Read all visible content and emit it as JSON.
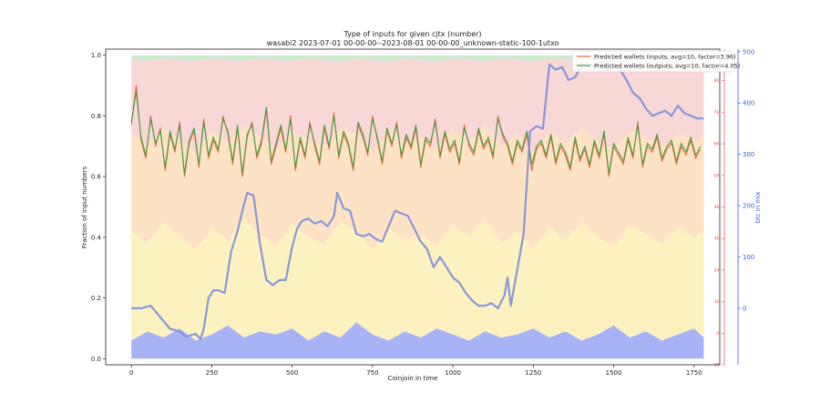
{
  "chart_data": {
    "type": "line",
    "title": "Type of inputs for given cjtx (number)",
    "subtitle": "wasabi2 2023-07-01 00-00-00--2023-08-01 00-00-00_unknown-static-100-1utxo",
    "xlabel": "Coinjoin in time",
    "ylabel": "Fraction of input numbers",
    "y2label": "btc in mix",
    "xlim": [
      -80,
      1830
    ],
    "ylim": [
      -0.02,
      1.02
    ],
    "y2lim": [
      -110,
      505
    ],
    "y3lim": [
      -10,
      90
    ],
    "x_ticks": [
      0,
      250,
      500,
      750,
      1000,
      1250,
      1500,
      1750
    ],
    "y_ticks": [
      0.0,
      0.2,
      0.4,
      0.6,
      0.8,
      1.0
    ],
    "y2_ticks": [
      0,
      100,
      200,
      300,
      400,
      500
    ],
    "y3_ticks": [
      -10,
      0,
      10,
      20,
      30,
      40,
      50,
      60,
      70,
      80
    ],
    "legend": {
      "position": "top-right"
    },
    "colors": {
      "inputs": "#e8653a",
      "outputs": "#3f9e3f",
      "btc": "#7b8fd9",
      "y2axis": "#3d5fd6",
      "y3axis": "#e0362c",
      "band_blue": "#a8b3f5",
      "band_yellow": "#fdf1c0",
      "band_orange": "#fde3c6",
      "band_pink": "#f8d7d7",
      "band_green": "#cfe9cf"
    },
    "series": [
      {
        "name": "Predicted wallets (inputs, avg=10, factor=3.96)",
        "axis": "y",
        "x": [
          0,
          15,
          30,
          45,
          60,
          75,
          90,
          105,
          120,
          135,
          150,
          165,
          180,
          195,
          210,
          225,
          240,
          255,
          270,
          285,
          300,
          315,
          330,
          345,
          360,
          375,
          390,
          405,
          420,
          435,
          450,
          465,
          480,
          495,
          510,
          525,
          540,
          555,
          570,
          585,
          600,
          615,
          630,
          645,
          660,
          675,
          690,
          705,
          720,
          735,
          750,
          765,
          780,
          795,
          810,
          825,
          840,
          855,
          870,
          885,
          900,
          915,
          930,
          945,
          960,
          975,
          990,
          1005,
          1020,
          1035,
          1050,
          1065,
          1080,
          1095,
          1110,
          1125,
          1140,
          1155,
          1170,
          1185,
          1200,
          1215,
          1230,
          1245,
          1260,
          1275,
          1290,
          1305,
          1320,
          1335,
          1350,
          1365,
          1380,
          1395,
          1410,
          1425,
          1440,
          1455,
          1470,
          1485,
          1500,
          1515,
          1530,
          1545,
          1560,
          1575,
          1590,
          1605,
          1620,
          1635,
          1650,
          1665,
          1680,
          1695,
          1710,
          1725,
          1740,
          1755,
          1770
        ],
        "values": [
          0.77,
          0.9,
          0.72,
          0.66,
          0.8,
          0.7,
          0.76,
          0.62,
          0.74,
          0.68,
          0.78,
          0.6,
          0.71,
          0.75,
          0.63,
          0.79,
          0.66,
          0.72,
          0.68,
          0.8,
          0.74,
          0.64,
          0.76,
          0.6,
          0.73,
          0.78,
          0.66,
          0.71,
          0.82,
          0.64,
          0.7,
          0.76,
          0.68,
          0.8,
          0.62,
          0.72,
          0.66,
          0.78,
          0.7,
          0.64,
          0.76,
          0.69,
          0.81,
          0.66,
          0.74,
          0.7,
          0.62,
          0.77,
          0.73,
          0.67,
          0.8,
          0.72,
          0.64,
          0.75,
          0.7,
          0.78,
          0.66,
          0.73,
          0.69,
          0.76,
          0.63,
          0.72,
          0.7,
          0.79,
          0.66,
          0.74,
          0.68,
          0.71,
          0.64,
          0.77,
          0.7,
          0.67,
          0.75,
          0.69,
          0.72,
          0.66,
          0.8,
          0.73,
          0.7,
          0.64,
          0.71,
          0.68,
          0.74,
          0.62,
          0.69,
          0.71,
          0.66,
          0.73,
          0.64,
          0.7,
          0.67,
          0.62,
          0.72,
          0.65,
          0.69,
          0.63,
          0.71,
          0.66,
          0.74,
          0.6,
          0.7,
          0.67,
          0.64,
          0.72,
          0.66,
          0.78,
          0.63,
          0.7,
          0.68,
          0.73,
          0.65,
          0.69,
          0.71,
          0.64,
          0.7,
          0.67,
          0.72,
          0.66,
          0.69
        ]
      },
      {
        "name": "Predicted wallets (outputs, avg=10, factor=4.05)",
        "axis": "y",
        "x": [
          0,
          15,
          30,
          45,
          60,
          75,
          90,
          105,
          120,
          135,
          150,
          165,
          180,
          195,
          210,
          225,
          240,
          255,
          270,
          285,
          300,
          315,
          330,
          345,
          360,
          375,
          390,
          405,
          420,
          435,
          450,
          465,
          480,
          495,
          510,
          525,
          540,
          555,
          570,
          585,
          600,
          615,
          630,
          645,
          660,
          675,
          690,
          705,
          720,
          735,
          750,
          765,
          780,
          795,
          810,
          825,
          840,
          855,
          870,
          885,
          900,
          915,
          930,
          945,
          960,
          975,
          990,
          1005,
          1020,
          1035,
          1050,
          1065,
          1080,
          1095,
          1110,
          1125,
          1140,
          1155,
          1170,
          1185,
          1200,
          1215,
          1230,
          1245,
          1260,
          1275,
          1290,
          1305,
          1320,
          1335,
          1350,
          1365,
          1380,
          1395,
          1410,
          1425,
          1440,
          1455,
          1470,
          1485,
          1500,
          1515,
          1530,
          1545,
          1560,
          1575,
          1590,
          1605,
          1620,
          1635,
          1650,
          1665,
          1680,
          1695,
          1710,
          1725,
          1740,
          1755,
          1770
        ],
        "values": [
          0.78,
          0.88,
          0.73,
          0.67,
          0.79,
          0.71,
          0.75,
          0.63,
          0.75,
          0.69,
          0.77,
          0.61,
          0.72,
          0.76,
          0.64,
          0.78,
          0.67,
          0.73,
          0.69,
          0.79,
          0.75,
          0.65,
          0.77,
          0.61,
          0.74,
          0.77,
          0.67,
          0.72,
          0.83,
          0.65,
          0.71,
          0.77,
          0.69,
          0.79,
          0.63,
          0.73,
          0.67,
          0.77,
          0.71,
          0.65,
          0.77,
          0.7,
          0.8,
          0.67,
          0.75,
          0.71,
          0.63,
          0.78,
          0.74,
          0.68,
          0.79,
          0.73,
          0.65,
          0.76,
          0.71,
          0.77,
          0.67,
          0.74,
          0.7,
          0.77,
          0.64,
          0.73,
          0.71,
          0.78,
          0.67,
          0.75,
          0.69,
          0.72,
          0.65,
          0.76,
          0.71,
          0.68,
          0.76,
          0.7,
          0.73,
          0.67,
          0.79,
          0.74,
          0.71,
          0.65,
          0.72,
          0.69,
          0.75,
          0.64,
          0.7,
          0.72,
          0.67,
          0.74,
          0.65,
          0.71,
          0.68,
          0.63,
          0.73,
          0.66,
          0.7,
          0.64,
          0.72,
          0.67,
          0.75,
          0.61,
          0.71,
          0.68,
          0.65,
          0.73,
          0.67,
          0.77,
          0.64,
          0.71,
          0.69,
          0.74,
          0.66,
          0.7,
          0.72,
          0.65,
          0.71,
          0.68,
          0.73,
          0.67,
          0.7
        ]
      },
      {
        "name": "btc in mix",
        "axis": "y2",
        "x": [
          0,
          30,
          60,
          80,
          100,
          120,
          150,
          170,
          200,
          215,
          225,
          240,
          255,
          270,
          290,
          310,
          330,
          345,
          360,
          380,
          400,
          420,
          440,
          460,
          480,
          500,
          515,
          530,
          550,
          570,
          590,
          610,
          630,
          640,
          660,
          680,
          700,
          720,
          740,
          760,
          780,
          800,
          820,
          840,
          860,
          880,
          900,
          920,
          940,
          960,
          980,
          1000,
          1020,
          1040,
          1060,
          1080,
          1100,
          1120,
          1140,
          1160,
          1170,
          1180,
          1200,
          1220,
          1240,
          1260,
          1280,
          1300,
          1320,
          1340,
          1360,
          1380,
          1400,
          1420,
          1440,
          1460,
          1480,
          1500,
          1520,
          1540,
          1560,
          1580,
          1600,
          1620,
          1640,
          1660,
          1680,
          1700,
          1720,
          1740,
          1760,
          1780
        ],
        "values": [
          0,
          0,
          5,
          -10,
          -25,
          -40,
          -45,
          -55,
          -50,
          -60,
          -40,
          20,
          35,
          35,
          30,
          110,
          150,
          190,
          225,
          220,
          125,
          55,
          45,
          55,
          55,
          120,
          155,
          170,
          175,
          165,
          170,
          160,
          180,
          225,
          195,
          190,
          145,
          140,
          145,
          135,
          130,
          160,
          190,
          185,
          180,
          155,
          130,
          115,
          80,
          100,
          80,
          60,
          50,
          30,
          15,
          5,
          5,
          10,
          0,
          25,
          60,
          5,
          75,
          145,
          345,
          355,
          350,
          475,
          465,
          470,
          445,
          450,
          475,
          470,
          470,
          480,
          465,
          470,
          465,
          445,
          420,
          410,
          390,
          375,
          380,
          385,
          375,
          395,
          380,
          375,
          370,
          370
        ]
      }
    ],
    "bands": {
      "x": [
        0,
        50,
        100,
        150,
        200,
        250,
        300,
        350,
        400,
        450,
        500,
        550,
        600,
        650,
        700,
        750,
        800,
        850,
        900,
        950,
        1000,
        1050,
        1100,
        1150,
        1200,
        1250,
        1300,
        1350,
        1400,
        1450,
        1500,
        1550,
        1600,
        1650,
        1700,
        1750,
        1780
      ],
      "blue_top": [
        0.06,
        0.09,
        0.07,
        0.1,
        0.06,
        0.08,
        0.11,
        0.07,
        0.09,
        0.08,
        0.1,
        0.06,
        0.09,
        0.07,
        0.12,
        0.08,
        0.06,
        0.09,
        0.07,
        0.1,
        0.08,
        0.06,
        0.09,
        0.07,
        0.08,
        0.1,
        0.07,
        0.09,
        0.06,
        0.08,
        0.11,
        0.07,
        0.09,
        0.06,
        0.08,
        0.1,
        0.07
      ],
      "yellow_top": [
        0.42,
        0.38,
        0.45,
        0.4,
        0.36,
        0.43,
        0.39,
        0.46,
        0.41,
        0.37,
        0.44,
        0.4,
        0.38,
        0.45,
        0.42,
        0.36,
        0.43,
        0.39,
        0.41,
        0.37,
        0.44,
        0.4,
        0.46,
        0.38,
        0.42,
        0.36,
        0.43,
        0.39,
        0.45,
        0.4,
        0.37,
        0.44,
        0.41,
        0.38,
        0.43,
        0.4,
        0.42
      ],
      "orange_top": [
        0.74,
        0.7,
        0.76,
        0.72,
        0.68,
        0.75,
        0.71,
        0.77,
        0.73,
        0.69,
        0.75,
        0.72,
        0.7,
        0.76,
        0.74,
        0.68,
        0.75,
        0.71,
        0.73,
        0.69,
        0.76,
        0.72,
        0.77,
        0.7,
        0.74,
        0.68,
        0.75,
        0.71,
        0.76,
        0.72,
        0.69,
        0.75,
        0.73,
        0.7,
        0.74,
        0.72,
        0.73
      ],
      "pink_top": [
        0.985,
        0.98,
        0.99,
        0.985,
        0.98,
        0.99,
        0.985,
        0.98,
        0.99,
        0.985,
        0.98,
        0.99,
        0.985,
        0.98,
        0.99,
        0.985,
        0.98,
        0.99,
        0.985,
        0.98,
        0.99,
        0.985,
        0.98,
        0.99,
        0.985,
        0.98,
        0.99,
        0.985,
        0.98,
        0.99,
        0.985,
        0.98,
        0.99,
        0.985,
        0.98,
        0.99,
        0.985
      ]
    }
  }
}
